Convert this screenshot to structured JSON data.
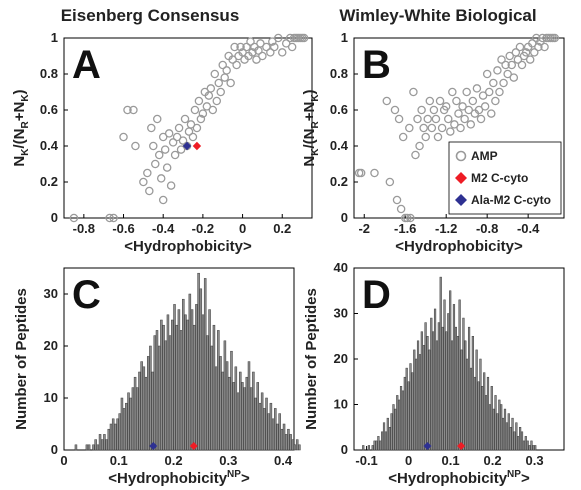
{
  "chart_data": [
    {
      "panel": "A",
      "type": "scatter",
      "title": "Eisenberg Consensus",
      "xlabel": "<Hydrophobicity>",
      "ylabel": "N_K/(N_R+N_K)",
      "xlim": [
        -0.9,
        0.35
      ],
      "ylim": [
        0,
        1
      ],
      "xticks": [
        "-0.8",
        "-0.6",
        "-0.4",
        "-0.2",
        "0",
        "0.2"
      ],
      "yticks": [
        "0",
        "0.2",
        "0.4",
        "0.6",
        "0.8",
        "1"
      ],
      "grid": false,
      "series": [
        {
          "name": "AMP",
          "color": "#9a9a9a",
          "marker": "open-circle",
          "x": [
            -0.85,
            -0.67,
            -0.65,
            -0.6,
            -0.58,
            -0.55,
            -0.54,
            -0.5,
            -0.48,
            -0.47,
            -0.46,
            -0.45,
            -0.44,
            -0.43,
            -0.42,
            -0.41,
            -0.4,
            -0.4,
            -0.39,
            -0.38,
            -0.37,
            -0.36,
            -0.35,
            -0.34,
            -0.33,
            -0.32,
            -0.31,
            -0.3,
            -0.29,
            -0.28,
            -0.27,
            -0.26,
            -0.25,
            -0.24,
            -0.23,
            -0.22,
            -0.21,
            -0.2,
            -0.19,
            -0.18,
            -0.17,
            -0.16,
            -0.15,
            -0.14,
            -0.13,
            -0.12,
            -0.11,
            -0.1,
            -0.09,
            -0.08,
            -0.07,
            -0.06,
            -0.05,
            -0.04,
            -0.03,
            -0.02,
            -0.01,
            0.0,
            0.01,
            0.02,
            0.03,
            0.04,
            0.05,
            0.06,
            0.07,
            0.08,
            0.09,
            0.1,
            0.12,
            0.14,
            0.15,
            0.16,
            0.18,
            0.2,
            0.22,
            0.24,
            0.25,
            0.26,
            0.27,
            0.28,
            0.29,
            0.3,
            0.31
          ],
          "y": [
            0.0,
            0.0,
            0.0,
            0.45,
            0.6,
            0.6,
            0.4,
            0.2,
            0.25,
            0.15,
            0.5,
            0.4,
            0.3,
            0.55,
            0.35,
            0.22,
            0.45,
            0.1,
            0.38,
            0.28,
            0.47,
            0.18,
            0.42,
            0.35,
            0.45,
            0.5,
            0.38,
            0.43,
            0.55,
            0.4,
            0.48,
            0.52,
            0.45,
            0.6,
            0.5,
            0.65,
            0.55,
            0.58,
            0.7,
            0.62,
            0.68,
            0.72,
            0.6,
            0.8,
            0.65,
            0.75,
            0.7,
            0.85,
            0.78,
            0.82,
            0.9,
            0.75,
            0.88,
            0.95,
            0.85,
            0.9,
            0.95,
            0.92,
            0.88,
            0.95,
            0.9,
            0.98,
            0.92,
            0.95,
            0.88,
            0.93,
            0.97,
            0.9,
            0.95,
            0.92,
            0.98,
            0.95,
            1.0,
            0.92,
            0.97,
            1.0,
            0.95,
            1.0,
            1.0,
            1.0,
            1.0,
            1.0,
            1.0
          ]
        },
        {
          "name": "M2 C-cyto",
          "color": "#ee1c25",
          "marker": "diamond",
          "x": [
            -0.23
          ],
          "y": [
            0.4
          ]
        },
        {
          "name": "Ala-M2 C-cyto",
          "color": "#2e3192",
          "marker": "diamond",
          "x": [
            -0.28
          ],
          "y": [
            0.4
          ]
        }
      ]
    },
    {
      "panel": "B",
      "type": "scatter",
      "title": "Wimley-White Biological",
      "xlabel": "<Hydrophobicity>",
      "ylabel": "N_K/(N_R+N_K)",
      "xlim": [
        -2.1,
        -0.05
      ],
      "ylim": [
        0,
        1
      ],
      "xticks": [
        "-2",
        "-1.6",
        "-1.2",
        "-0.8",
        "-0.4"
      ],
      "yticks": [
        "0",
        "0.2",
        "0.4",
        "0.6",
        "0.8",
        "1"
      ],
      "grid": false,
      "legend": {
        "position": "bottom-right",
        "entries": [
          "AMP",
          "M2 C-cyto",
          "Ala-M2 C-cyto"
        ]
      },
      "series": [
        {
          "name": "AMP",
          "color": "#9a9a9a",
          "marker": "open-circle",
          "x": [
            -2.05,
            -2.03,
            -1.9,
            -1.78,
            -1.75,
            -1.7,
            -1.68,
            -1.66,
            -1.64,
            -1.62,
            -1.6,
            -1.58,
            -1.56,
            -1.55,
            -1.52,
            -1.5,
            -1.48,
            -1.46,
            -1.44,
            -1.42,
            -1.4,
            -1.38,
            -1.36,
            -1.34,
            -1.32,
            -1.3,
            -1.28,
            -1.26,
            -1.24,
            -1.22,
            -1.2,
            -1.18,
            -1.16,
            -1.14,
            -1.12,
            -1.1,
            -1.08,
            -1.06,
            -1.04,
            -1.02,
            -1.0,
            -0.98,
            -0.96,
            -0.94,
            -0.92,
            -0.9,
            -0.88,
            -0.86,
            -0.84,
            -0.82,
            -0.8,
            -0.78,
            -0.76,
            -0.74,
            -0.72,
            -0.7,
            -0.68,
            -0.66,
            -0.64,
            -0.62,
            -0.6,
            -0.58,
            -0.56,
            -0.54,
            -0.52,
            -0.5,
            -0.48,
            -0.46,
            -0.44,
            -0.42,
            -0.4,
            -0.38,
            -0.36,
            -0.34,
            -0.32,
            -0.3,
            -0.28,
            -0.26,
            -0.24,
            -0.22,
            -0.2,
            -0.18,
            -0.16,
            -0.14
          ],
          "y": [
            0.25,
            0.25,
            0.25,
            0.65,
            0.2,
            0.6,
            0.1,
            0.55,
            0.05,
            0.45,
            0.0,
            0.0,
            0.5,
            0.0,
            0.7,
            0.35,
            0.55,
            0.4,
            0.6,
            0.5,
            0.45,
            0.55,
            0.65,
            0.5,
            0.6,
            0.55,
            0.45,
            0.65,
            0.5,
            0.6,
            0.62,
            0.55,
            0.48,
            0.7,
            0.52,
            0.65,
            0.58,
            0.5,
            0.62,
            0.55,
            0.7,
            0.6,
            0.52,
            0.65,
            0.58,
            0.72,
            0.6,
            0.55,
            0.68,
            0.62,
            0.8,
            0.7,
            0.58,
            0.75,
            0.65,
            0.82,
            0.7,
            0.88,
            0.75,
            0.85,
            0.8,
            0.9,
            0.85,
            0.78,
            0.92,
            0.88,
            0.95,
            0.85,
            0.9,
            0.92,
            0.95,
            0.88,
            0.97,
            0.92,
            1.0,
            0.95,
            0.98,
            1.0,
            0.95,
            1.0,
            1.0,
            1.0,
            1.0,
            1.0
          ]
        },
        {
          "name": "M2 C-cyto",
          "color": "#ee1c25",
          "marker": "diamond",
          "x": [
            -0.96
          ],
          "y": [
            0.4
          ]
        },
        {
          "name": "Ala-M2 C-cyto",
          "color": "#2e3192",
          "marker": "diamond",
          "x": [
            -1.01
          ],
          "y": [
            0.4
          ]
        }
      ]
    },
    {
      "panel": "C",
      "type": "bar",
      "xlabel": "<Hydrophobicity",
      "xlabel_sup": "NP",
      "xlabel_end": ">",
      "ylabel": "Number of Peptides",
      "xlim": [
        0,
        0.42
      ],
      "ylim": [
        0,
        35
      ],
      "xticks": [
        "0",
        "0.1",
        "0.2",
        "0.3",
        "0.4"
      ],
      "yticks": [
        "0",
        "10",
        "20",
        "30"
      ],
      "bin_start": 0.02,
      "bin_width": 0.004,
      "bar_color": "#8c8c8c",
      "values": [
        1,
        0,
        0,
        0,
        0,
        1,
        1,
        0,
        1,
        2,
        1,
        3,
        2,
        3,
        2,
        4,
        5,
        6,
        5,
        6,
        7,
        10,
        8,
        9,
        11,
        10,
        12,
        14,
        12,
        15,
        17,
        16,
        14,
        18,
        20,
        15,
        22,
        23,
        20,
        25,
        24,
        21,
        26,
        22,
        25,
        28,
        24,
        27,
        23,
        29,
        26,
        25,
        30,
        27,
        24,
        28,
        34,
        31,
        26,
        33,
        22,
        27,
        20,
        24,
        16,
        23,
        18,
        15,
        21,
        17,
        14,
        19,
        13,
        16,
        11,
        15,
        13,
        12,
        14,
        17,
        12,
        15,
        10,
        13,
        9,
        11,
        8,
        10,
        7,
        9,
        6,
        8,
        5,
        7,
        4,
        5,
        3,
        4,
        3,
        2,
        1,
        2,
        1
      ],
      "markers": [
        {
          "name": "M2 C-cyto",
          "color": "#ee1c25",
          "x": 0.237
        },
        {
          "name": "Ala-M2 C-cyto",
          "color": "#2e3192",
          "x": 0.163
        }
      ]
    },
    {
      "panel": "D",
      "type": "bar",
      "xlabel": "<Hydrophobicity",
      "xlabel_sup": "NP",
      "xlabel_end": ">",
      "ylabel": "Number of Peptides",
      "xlim": [
        -0.13,
        0.37
      ],
      "ylim": [
        0,
        40
      ],
      "xticks": [
        "-0.1",
        "0",
        "0.1",
        "0.2",
        "0.3"
      ],
      "yticks": [
        "0",
        "10",
        "20",
        "30",
        "40"
      ],
      "bin_start": -0.11,
      "bin_width": 0.0045,
      "bar_color": "#8c8c8c",
      "values": [
        1,
        0,
        0,
        1,
        0,
        1,
        2,
        2,
        3,
        2,
        4,
        6,
        4,
        7,
        5,
        8,
        10,
        9,
        12,
        11,
        14,
        13,
        16,
        18,
        15,
        19,
        17,
        22,
        20,
        24,
        21,
        26,
        23,
        28,
        25,
        22,
        29,
        26,
        31,
        24,
        28,
        38,
        27,
        33,
        26,
        30,
        35,
        24,
        32,
        27,
        25,
        33,
        22,
        29,
        24,
        20,
        27,
        18,
        25,
        16,
        22,
        15,
        20,
        14,
        17,
        12,
        16,
        10,
        14,
        9,
        12,
        8,
        11,
        10,
        7,
        9,
        6,
        8,
        5,
        7,
        4,
        6,
        3,
        5,
        4,
        2,
        3,
        2,
        1,
        2,
        1,
        1
      ],
      "markers": [
        {
          "name": "M2 C-cyto",
          "color": "#ee1c25",
          "x": 0.125
        },
        {
          "name": "Ala-M2 C-cyto",
          "color": "#2e3192",
          "x": 0.045
        }
      ]
    }
  ]
}
